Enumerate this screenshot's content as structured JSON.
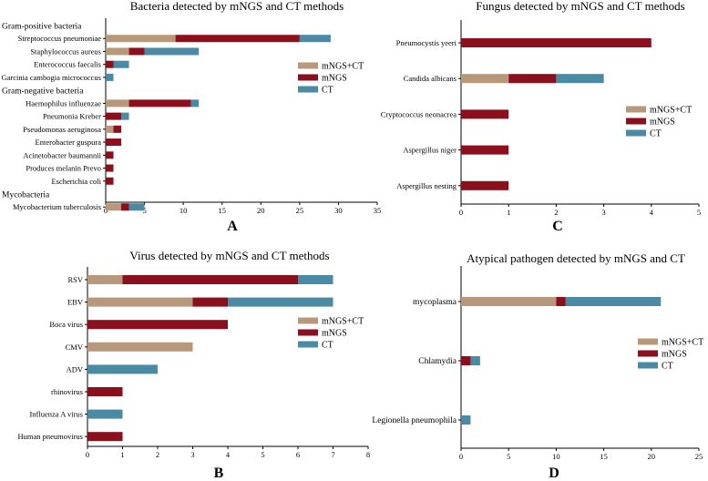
{
  "colors": {
    "mNGS+CT": "#b8987a",
    "mNGS": "#8b0f1c",
    "CT": "#4a8aa5"
  },
  "chart_data": [
    {
      "id": "A",
      "type": "bar",
      "orientation": "horizontal",
      "stacked": true,
      "title": "Bacteria detected by mNGS and CT methods",
      "panel_label": "A",
      "xlim": [
        0,
        35
      ],
      "xticks": [
        "0",
        "5",
        "10",
        "15",
        "20",
        "25",
        "30",
        "35"
      ],
      "legend": [
        "mNGS+CT",
        "mNGS",
        "CT"
      ],
      "legend_position": "right",
      "rows": [
        {
          "kind": "group",
          "label": "Gram-positive bacteria"
        },
        {
          "kind": "bar",
          "label": "Streptococcus pneumoniae",
          "values": [
            9,
            16,
            4
          ]
        },
        {
          "kind": "bar",
          "label": "Staphylococcus aureus",
          "values": [
            3,
            2,
            7
          ]
        },
        {
          "kind": "bar",
          "label": "Enterococcus faecalis",
          "values": [
            0,
            1,
            2
          ]
        },
        {
          "kind": "bar",
          "label": "Garcinia cambogia micrococcus",
          "values": [
            0,
            0,
            1
          ]
        },
        {
          "kind": "group",
          "label": "Gram-negative bacteria"
        },
        {
          "kind": "bar",
          "label": "Haemophilus influenzae",
          "values": [
            3,
            8,
            1
          ]
        },
        {
          "kind": "bar",
          "label": "Pneumonia Kreber",
          "values": [
            0,
            2,
            1
          ]
        },
        {
          "kind": "bar",
          "label": "Pseudomonas aeruginosa",
          "values": [
            1,
            1,
            0
          ]
        },
        {
          "kind": "bar",
          "label": "Enterobacter guspura",
          "values": [
            0,
            2,
            0
          ]
        },
        {
          "kind": "bar",
          "label": "Acinetobacter baumannii",
          "values": [
            0,
            1,
            0
          ]
        },
        {
          "kind": "bar",
          "label": "Produces melanin Prevo",
          "values": [
            0,
            1,
            0
          ]
        },
        {
          "kind": "bar",
          "label": "Escherichia coli",
          "values": [
            0,
            1,
            0
          ]
        },
        {
          "kind": "group",
          "label": "Mycobacteria"
        },
        {
          "kind": "bar",
          "label": "Mycobacterium tuberculosis",
          "values": [
            2,
            1,
            2
          ]
        }
      ]
    },
    {
      "id": "C",
      "type": "bar",
      "orientation": "horizontal",
      "stacked": true,
      "title": "Fungus detected by mNGS and CT methods",
      "panel_label": "C",
      "xlim": [
        0,
        5
      ],
      "xticks": [
        "0",
        "1",
        "2",
        "3",
        "4",
        "5"
      ],
      "legend": [
        "mNGS+CT",
        "mNGS",
        "CT"
      ],
      "legend_position": "right",
      "rows": [
        {
          "kind": "bar",
          "label": "Pneumocystis yeeri",
          "values": [
            0,
            4,
            0
          ]
        },
        {
          "kind": "bar",
          "label": "Candida albicans",
          "values": [
            1,
            1,
            1
          ]
        },
        {
          "kind": "bar",
          "label": "Cryptococcus neonacrea",
          "values": [
            0,
            1,
            0
          ]
        },
        {
          "kind": "bar",
          "label": "Aspergillus niger",
          "values": [
            0,
            1,
            0
          ]
        },
        {
          "kind": "bar",
          "label": "Aspergillus nesting",
          "values": [
            0,
            1,
            0
          ]
        }
      ]
    },
    {
      "id": "B",
      "type": "bar",
      "orientation": "horizontal",
      "stacked": true,
      "title": "Virus detected by mNGS and CT methods",
      "panel_label": "B",
      "xlim": [
        0,
        8
      ],
      "xticks": [
        "0",
        "1",
        "2",
        "3",
        "4",
        "5",
        "6",
        "7",
        "8"
      ],
      "legend": [
        "mNGS+CT",
        "mNGS",
        "CT"
      ],
      "legend_position": "right",
      "rows": [
        {
          "kind": "bar",
          "label": "RSV",
          "values": [
            1,
            5,
            1
          ]
        },
        {
          "kind": "bar",
          "label": "EBV",
          "values": [
            3,
            1,
            3
          ]
        },
        {
          "kind": "bar",
          "label": "Boca virus",
          "values": [
            0,
            4,
            0
          ]
        },
        {
          "kind": "bar",
          "label": "CMV",
          "values": [
            3,
            0,
            0
          ]
        },
        {
          "kind": "bar",
          "label": "ADV",
          "values": [
            0,
            0,
            2
          ]
        },
        {
          "kind": "bar",
          "label": "rhinovirus",
          "values": [
            0,
            1,
            0
          ]
        },
        {
          "kind": "bar",
          "label": "Influenza A virus",
          "values": [
            0,
            0,
            1
          ]
        },
        {
          "kind": "bar",
          "label": "Human pneumovirus",
          "values": [
            0,
            1,
            0
          ]
        }
      ]
    },
    {
      "id": "D",
      "type": "bar",
      "orientation": "horizontal",
      "stacked": true,
      "title": "Atypical pathogen detected by mNGS and CT",
      "panel_label": "D",
      "xlim": [
        0,
        25
      ],
      "xticks": [
        "0",
        "5",
        "10",
        "15",
        "20",
        "25"
      ],
      "legend": [
        "mNGS+CT",
        "mNGS",
        "CT"
      ],
      "legend_position": "right",
      "rows": [
        {
          "kind": "bar",
          "label": "mycoplasma",
          "values": [
            10,
            1,
            10
          ]
        },
        {
          "kind": "bar",
          "label": "Chlamydia",
          "values": [
            0,
            1,
            1
          ]
        },
        {
          "kind": "bar",
          "label": "Legionella pneumophila",
          "values": [
            0,
            0,
            1
          ]
        }
      ]
    }
  ]
}
